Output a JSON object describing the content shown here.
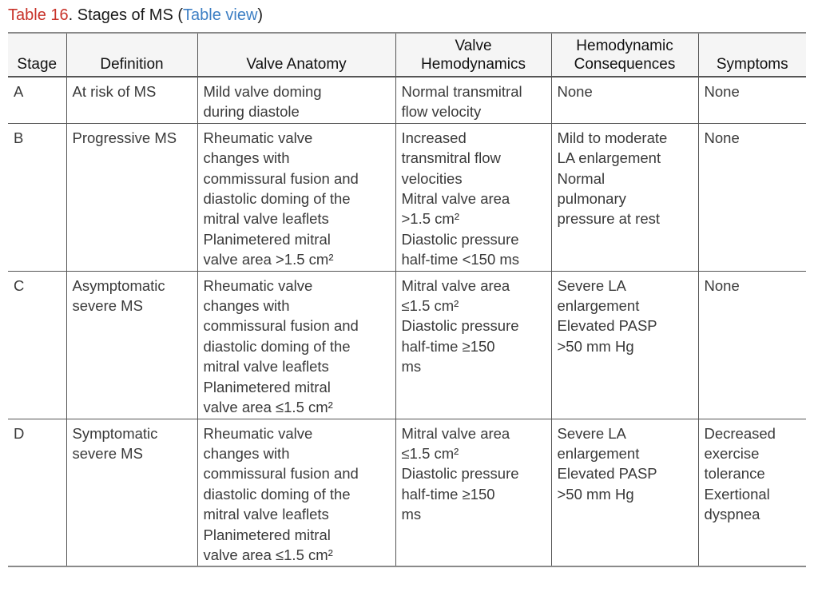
{
  "caption": {
    "label": "Table 16",
    "title": ". Stages of MS (",
    "link": "Table view",
    "close": ")"
  },
  "table": {
    "headers": [
      [
        "Stage"
      ],
      [
        "Definition"
      ],
      [
        "Valve Anatomy"
      ],
      [
        "Valve",
        "Hemodynamics"
      ],
      [
        "Hemodynamic",
        "Consequences"
      ],
      [
        "Symptoms"
      ]
    ],
    "rows": [
      [
        [
          "A"
        ],
        [
          "At risk of MS"
        ],
        [
          "Mild valve doming",
          "during diastole"
        ],
        [
          "Normal transmitral",
          "flow velocity"
        ],
        [
          "None"
        ],
        [
          "None"
        ]
      ],
      [
        [
          "B"
        ],
        [
          "Progressive MS"
        ],
        [
          "Rheumatic valve",
          "changes with",
          "commissural fusion and",
          "diastolic doming of the",
          "mitral valve leaflets",
          "Planimetered mitral",
          "valve area >1.5 cm²"
        ],
        [
          "Increased",
          "transmitral flow",
          "velocities",
          "Mitral valve area",
          ">1.5 cm²",
          "Diastolic pressure",
          "half-time <150 ms"
        ],
        [
          "Mild to moderate",
          "LA enlargement",
          "Normal",
          "pulmonary",
          "pressure at rest"
        ],
        [
          "None"
        ]
      ],
      [
        [
          "C"
        ],
        [
          "Asymptomatic",
          "severe MS"
        ],
        [
          "Rheumatic valve",
          "changes with",
          "commissural fusion and",
          "diastolic doming of the",
          "mitral valve leaflets",
          "Planimetered mitral",
          "valve area ≤1.5 cm²"
        ],
        [
          "Mitral valve area",
          "≤1.5 cm²",
          "Diastolic pressure",
          "half-time ≥150",
          "ms"
        ],
        [
          "Severe LA",
          "enlargement",
          "Elevated PASP",
          ">50 mm Hg"
        ],
        [
          "None"
        ]
      ],
      [
        [
          "D"
        ],
        [
          "Symptomatic",
          "severe MS"
        ],
        [
          "Rheumatic valve",
          "changes with",
          "commissural fusion and",
          "diastolic doming of the",
          "mitral valve leaflets",
          "Planimetered mitral",
          "valve area ≤1.5 cm²"
        ],
        [
          "Mitral valve area",
          "≤1.5 cm²",
          "Diastolic pressure",
          "half-time ≥150",
          "ms"
        ],
        [
          "Severe LA",
          "enlargement",
          "Elevated PASP",
          ">50 mm Hg"
        ],
        [
          "Decreased",
          "exercise",
          "tolerance",
          "Exertional",
          "dyspnea"
        ]
      ]
    ]
  }
}
